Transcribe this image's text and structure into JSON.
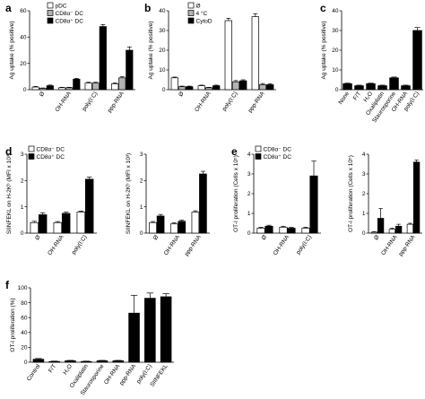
{
  "panels": [
    {
      "label": "a",
      "ylabel": "Ag uptake (% positive)",
      "ylim": [
        0,
        60
      ],
      "yticks": [
        0,
        20,
        40,
        60
      ],
      "categories": [
        "Ø",
        "OH-RNA",
        "poly(I:C)",
        "ppp-RNA"
      ],
      "legend": [
        {
          "name": "pDC",
          "color": "#ffffff"
        },
        {
          "name": "CD8α⁻ DC",
          "color": "#b3b3b3"
        },
        {
          "name": "CD8α⁺ DC",
          "color": "#000000"
        }
      ],
      "series": [
        {
          "name": "pDC",
          "color": "#ffffff",
          "values": [
            2,
            1.5,
            5,
            4.5
          ],
          "errors": [
            0.5,
            0.3,
            0.6,
            0.6
          ]
        },
        {
          "name": "CD8α⁻ DC",
          "color": "#b3b3b3",
          "values": [
            1,
            1.5,
            5,
            9
          ],
          "errors": [
            0.3,
            0.3,
            0.6,
            0.8
          ]
        },
        {
          "name": "CD8α⁺ DC",
          "color": "#000000",
          "values": [
            3,
            8,
            48,
            30
          ],
          "errors": [
            0.5,
            0.6,
            1.5,
            2.5
          ]
        }
      ]
    },
    {
      "label": "b",
      "ylabel": "Ag uptake (% positive)",
      "ylim": [
        0,
        40
      ],
      "yticks": [
        0,
        10,
        20,
        30,
        40
      ],
      "categories": [
        "Ø",
        "OH-RNA",
        "poly(I:C)",
        "ppp-RNA"
      ],
      "legend": [
        {
          "name": "Ø",
          "color": "#ffffff"
        },
        {
          "name": "4 °C",
          "color": "#b3b3b3"
        },
        {
          "name": "CytoD",
          "color": "#000000"
        }
      ],
      "series": [
        {
          "name": "Ø",
          "color": "#ffffff",
          "values": [
            6,
            2,
            35,
            37
          ],
          "errors": [
            0.4,
            0.3,
            1.2,
            1.5
          ]
        },
        {
          "name": "4 °C",
          "color": "#b3b3b3",
          "values": [
            1.5,
            1,
            4,
            2.5
          ],
          "errors": [
            0.3,
            0.2,
            0.6,
            0.6
          ]
        },
        {
          "name": "CytoD",
          "color": "#000000",
          "values": [
            1.5,
            2,
            4.5,
            2.5
          ],
          "errors": [
            0.3,
            0.3,
            0.5,
            0.5
          ]
        }
      ]
    },
    {
      "label": "c",
      "ylabel": "Ag uptake (% positive)",
      "ylim": [
        0,
        40
      ],
      "yticks": [
        0,
        10,
        20,
        30,
        40
      ],
      "categories": [
        "None",
        "F/T",
        "H₂O",
        "Oxaliplatin",
        "Staurosporine",
        "OH-RNA",
        "poly(I:C)"
      ],
      "legend": [],
      "series": [
        {
          "name": "",
          "color": "#000000",
          "values": [
            3,
            2,
            3,
            2,
            6,
            2,
            30
          ],
          "errors": [
            0.3,
            0.3,
            0.3,
            0.3,
            0.4,
            0.3,
            1.5
          ]
        }
      ]
    },
    {
      "label": "d",
      "ylabel": "SIINFEKL on H-2Kᵇ (MFI x 10³)",
      "ylim": [
        0,
        3
      ],
      "yticks": [
        0,
        1,
        2,
        3
      ],
      "categories": [
        "Ø",
        "OH-RNA",
        "poly(I:C)"
      ],
      "legend": [
        {
          "name": "CD8α⁻ DC",
          "color": "#ffffff"
        },
        {
          "name": "CD8α⁺ DC",
          "color": "#000000"
        }
      ],
      "series": [
        {
          "name": "CD8α⁻ DC",
          "color": "#ffffff",
          "values": [
            0.4,
            0.4,
            0.8
          ],
          "errors": [
            0.05,
            0.04,
            0.04
          ]
        },
        {
          "name": "CD8α⁺ DC",
          "color": "#000000",
          "values": [
            0.7,
            0.75,
            2.05
          ],
          "errors": [
            0.07,
            0.05,
            0.08
          ]
        }
      ]
    },
    {
      "label": "",
      "ylabel": "SIINFEKL on H-2Kᵇ (MFI x 10³)",
      "ylim": [
        0,
        3
      ],
      "yticks": [
        0,
        1,
        2,
        3
      ],
      "categories": [
        "Ø",
        "OH-RNA",
        "ppp-RNA"
      ],
      "legend": [],
      "series": [
        {
          "name": "CD8α⁻ DC",
          "color": "#ffffff",
          "values": [
            0.4,
            0.35,
            0.8
          ],
          "errors": [
            0.04,
            0.04,
            0.05
          ]
        },
        {
          "name": "CD8α⁺ DC",
          "color": "#000000",
          "values": [
            0.65,
            0.45,
            2.25
          ],
          "errors": [
            0.06,
            0.04,
            0.1
          ]
        }
      ]
    },
    {
      "label": "e",
      "ylabel": "OT-I proliferation (Cells x 10⁵)",
      "ylim": [
        0,
        4
      ],
      "yticks": [
        0,
        1,
        2,
        3,
        4
      ],
      "categories": [
        "Ø",
        "OH-RNA",
        "poly(I:C)"
      ],
      "legend": [
        {
          "name": "CD8α⁻ DC",
          "color": "#ffffff"
        },
        {
          "name": "CD8α⁺ DC",
          "color": "#000000"
        }
      ],
      "series": [
        {
          "name": "CD8α⁻ DC",
          "color": "#ffffff",
          "values": [
            0.25,
            0.3,
            0.25
          ],
          "errors": [
            0.05,
            0.05,
            0.05
          ]
        },
        {
          "name": "CD8α⁺ DC",
          "color": "#000000",
          "values": [
            0.35,
            0.25,
            2.9
          ],
          "errors": [
            0.05,
            0.05,
            0.75
          ]
        }
      ]
    },
    {
      "label": "",
      "ylabel": "OT-I proliferation (Cells x 10⁵)",
      "ylim": [
        0,
        4
      ],
      "yticks": [
        0,
        1,
        2,
        3,
        4
      ],
      "categories": [
        "Ø",
        "OH-RNA",
        "ppp-RNA"
      ],
      "legend": [],
      "series": [
        {
          "name": "CD8α⁻ DC",
          "color": "#ffffff",
          "values": [
            0.05,
            0.2,
            0.45
          ],
          "errors": [
            0.02,
            0.05,
            0.05
          ]
        },
        {
          "name": "CD8α⁺ DC",
          "color": "#000000",
          "values": [
            0.75,
            0.35,
            3.6
          ],
          "errors": [
            0.5,
            0.1,
            0.1
          ]
        }
      ]
    },
    {
      "label": "f",
      "ylabel": "OT-I proliferation (%)",
      "ylim": [
        0,
        100
      ],
      "yticks": [
        0,
        20,
        40,
        60,
        80,
        100
      ],
      "categories": [
        "Control",
        "F/T",
        "H₂O",
        "Oxaliplatin",
        "Staurosporine",
        "OH-RNA",
        "ppp-RNA",
        "poly(I:C)",
        "SIINFEKL"
      ],
      "legend": [],
      "series": [
        {
          "name": "",
          "color": "#000000",
          "values": [
            4,
            1,
            2,
            1,
            2,
            2,
            66,
            86,
            88
          ],
          "errors": [
            1,
            0.5,
            0.5,
            0.5,
            0.5,
            0.5,
            24,
            7,
            4
          ]
        }
      ]
    }
  ]
}
